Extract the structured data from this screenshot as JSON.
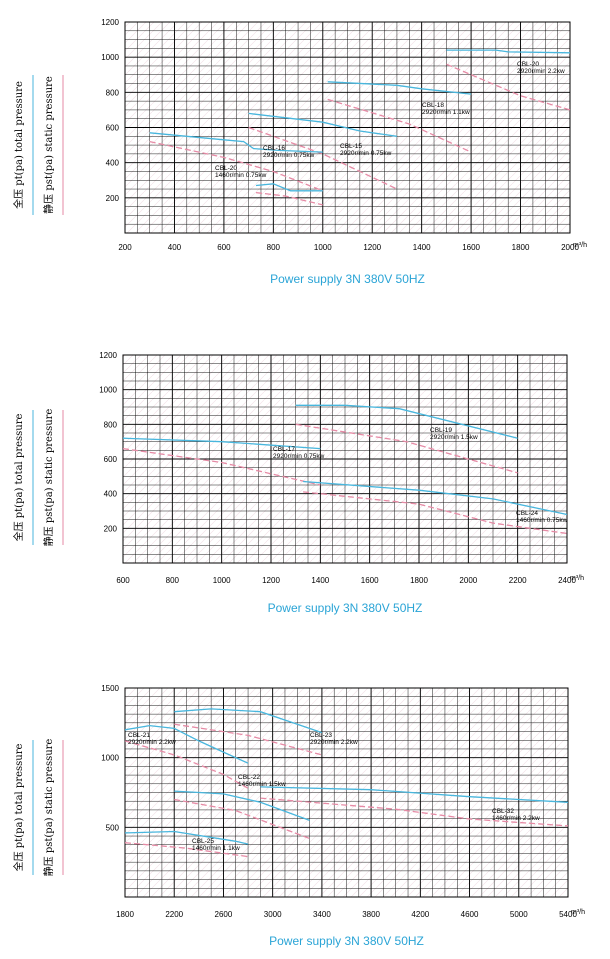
{
  "colors": {
    "total": "#48b6dd",
    "static": "#e68aa5",
    "grid": "#000000"
  },
  "y_label_total": "全压  pt(pa)  total pressure",
  "y_label_static": "静压  pst(pa)  static pressure",
  "chart_data": [
    {
      "type": "line",
      "x_unit": "m³/h",
      "supply": "Power supply   3N 380V  50HZ",
      "xlim": [
        200,
        2000
      ],
      "ylim": [
        0,
        1200
      ],
      "x_ticks": [
        200,
        400,
        600,
        800,
        1000,
        1200,
        1400,
        1600,
        1800,
        2000
      ],
      "y_ticks": [
        200,
        400,
        600,
        800,
        1000,
        1200
      ],
      "annotations": [
        {
          "model": "CBL-20",
          "spec": "2920r/min 2.2kw"
        },
        {
          "model": "CBL-18",
          "spec": "2920r/min 1.1kw"
        },
        {
          "model": "CBL-16",
          "spec": "2920r/min 0.75kw"
        },
        {
          "model": "CBL-15",
          "spec": "2920r/min 0.75kw"
        },
        {
          "model": "CBL-20",
          "spec": "1460r/min 0.75kw"
        }
      ],
      "series": [
        {
          "kind": "total",
          "points": [
            [
              1500,
              1040
            ],
            [
              1700,
              1040
            ],
            [
              1750,
              1030
            ],
            [
              2000,
              1025
            ]
          ]
        },
        {
          "kind": "static",
          "points": [
            [
              1500,
              960
            ],
            [
              1800,
              780
            ],
            [
              2000,
              700
            ]
          ]
        },
        {
          "kind": "total",
          "points": [
            [
              1020,
              860
            ],
            [
              1300,
              840
            ],
            [
              1400,
              820
            ],
            [
              1600,
              790
            ]
          ]
        },
        {
          "kind": "static",
          "points": [
            [
              1020,
              760
            ],
            [
              1350,
              620
            ],
            [
              1600,
              460
            ]
          ]
        },
        {
          "kind": "total",
          "points": [
            [
              700,
              680
            ],
            [
              1000,
              630
            ],
            [
              1150,
              580
            ],
            [
              1300,
              550
            ]
          ]
        },
        {
          "kind": "static",
          "points": [
            [
              700,
              600
            ],
            [
              1000,
              450
            ],
            [
              1300,
              250
            ]
          ]
        },
        {
          "kind": "total",
          "points": [
            [
              300,
              570
            ],
            [
              600,
              530
            ],
            [
              680,
              520
            ],
            [
              720,
              480
            ],
            [
              820,
              470
            ],
            [
              1000,
              460
            ]
          ]
        },
        {
          "kind": "static",
          "points": [
            [
              300,
              520
            ],
            [
              600,
              430
            ],
            [
              800,
              350
            ],
            [
              1000,
              240
            ]
          ]
        },
        {
          "kind": "total",
          "points": [
            [
              730,
              270
            ],
            [
              800,
              280
            ],
            [
              870,
              240
            ],
            [
              1000,
              240
            ]
          ]
        },
        {
          "kind": "static",
          "points": [
            [
              730,
              230
            ],
            [
              850,
              210
            ],
            [
              1000,
              160
            ]
          ]
        }
      ]
    },
    {
      "type": "line",
      "x_unit": "m³/h",
      "supply": "Power supply   3N 380V  50HZ",
      "xlim": [
        600,
        2400
      ],
      "ylim": [
        0,
        1200
      ],
      "x_ticks": [
        600,
        800,
        1000,
        1200,
        1400,
        1600,
        1800,
        2000,
        2200,
        2400
      ],
      "y_ticks": [
        200,
        400,
        600,
        800,
        1000,
        1200
      ],
      "annotations": [
        {
          "model": "CBL-19",
          "spec": "2920r/min 1.5kw"
        },
        {
          "model": "CBL-17",
          "spec": "2920r/min 0.75kw"
        },
        {
          "model": "CBL-24",
          "spec": "1460r/min 0.75kw"
        }
      ],
      "series": [
        {
          "kind": "total",
          "points": [
            [
              1300,
              910
            ],
            [
              1500,
              910
            ],
            [
              1720,
              890
            ],
            [
              2200,
              720
            ]
          ]
        },
        {
          "kind": "static",
          "points": [
            [
              1300,
              800
            ],
            [
              1750,
              700
            ],
            [
              2200,
              520
            ]
          ]
        },
        {
          "kind": "total",
          "points": [
            [
              600,
              720
            ],
            [
              1000,
              700
            ],
            [
              1100,
              690
            ],
            [
              1400,
              660
            ]
          ]
        },
        {
          "kind": "static",
          "points": [
            [
              600,
              660
            ],
            [
              1000,
              580
            ],
            [
              1400,
              450
            ]
          ]
        },
        {
          "kind": "total",
          "points": [
            [
              1330,
              470
            ],
            [
              1800,
              420
            ],
            [
              2100,
              370
            ],
            [
              2400,
              280
            ]
          ]
        },
        {
          "kind": "static",
          "points": [
            [
              1330,
              410
            ],
            [
              1800,
              340
            ],
            [
              2100,
              230
            ],
            [
              2400,
              170
            ]
          ]
        }
      ]
    },
    {
      "type": "line",
      "x_unit": "m³/h",
      "supply": "Power supply   3N 380V  50HZ",
      "xlim": [
        1800,
        5400
      ],
      "ylim": [
        0,
        1500
      ],
      "x_ticks": [
        1800,
        2200,
        2600,
        3000,
        3400,
        3800,
        4200,
        4600,
        5000,
        5400
      ],
      "y_ticks": [
        500,
        1000,
        1500
      ],
      "annotations": [
        {
          "model": "CBL-21",
          "spec": "2920r/min 2.2kw"
        },
        {
          "model": "CBL-23",
          "spec": "2920r/min 2.2kw"
        },
        {
          "model": "CBL-22",
          "spec": "1460r/min 1.5kw"
        },
        {
          "model": "CBL-32",
          "spec": "1460r/min 2.2kw"
        },
        {
          "model": "CBL-25",
          "spec": "1460r/min 1.1kw"
        }
      ],
      "series": [
        {
          "kind": "total",
          "points": [
            [
              1800,
              1200
            ],
            [
              2000,
              1230
            ],
            [
              2200,
              1210
            ],
            [
              2400,
              1120
            ],
            [
              2600,
              1040
            ],
            [
              2800,
              960
            ]
          ]
        },
        {
          "kind": "static",
          "points": [
            [
              1800,
              1120
            ],
            [
              2200,
              1020
            ],
            [
              2600,
              880
            ],
            [
              2800,
              780
            ]
          ]
        },
        {
          "kind": "total",
          "points": [
            [
              2200,
              1330
            ],
            [
              2500,
              1350
            ],
            [
              2900,
              1330
            ],
            [
              3200,
              1240
            ],
            [
              3400,
              1180
            ]
          ]
        },
        {
          "kind": "static",
          "points": [
            [
              2200,
              1240
            ],
            [
              2800,
              1160
            ],
            [
              3400,
              1020
            ]
          ]
        },
        {
          "kind": "total",
          "points": [
            [
              2200,
              760
            ],
            [
              2600,
              740
            ],
            [
              2900,
              680
            ],
            [
              3300,
              550
            ]
          ]
        },
        {
          "kind": "static",
          "points": [
            [
              2200,
              700
            ],
            [
              2700,
              620
            ],
            [
              3300,
              420
            ]
          ]
        },
        {
          "kind": "total",
          "points": [
            [
              2900,
              790
            ],
            [
              3800,
              770
            ],
            [
              4600,
              720
            ],
            [
              5400,
              680
            ]
          ]
        },
        {
          "kind": "static",
          "points": [
            [
              2900,
              710
            ],
            [
              4000,
              630
            ],
            [
              4600,
              560
            ],
            [
              5400,
              510
            ]
          ]
        },
        {
          "kind": "total",
          "points": [
            [
              1800,
              460
            ],
            [
              2200,
              470
            ],
            [
              2700,
              400
            ],
            [
              2800,
              380
            ]
          ]
        },
        {
          "kind": "static",
          "points": [
            [
              1800,
              390
            ],
            [
              2300,
              350
            ],
            [
              2800,
              290
            ]
          ]
        }
      ]
    }
  ]
}
